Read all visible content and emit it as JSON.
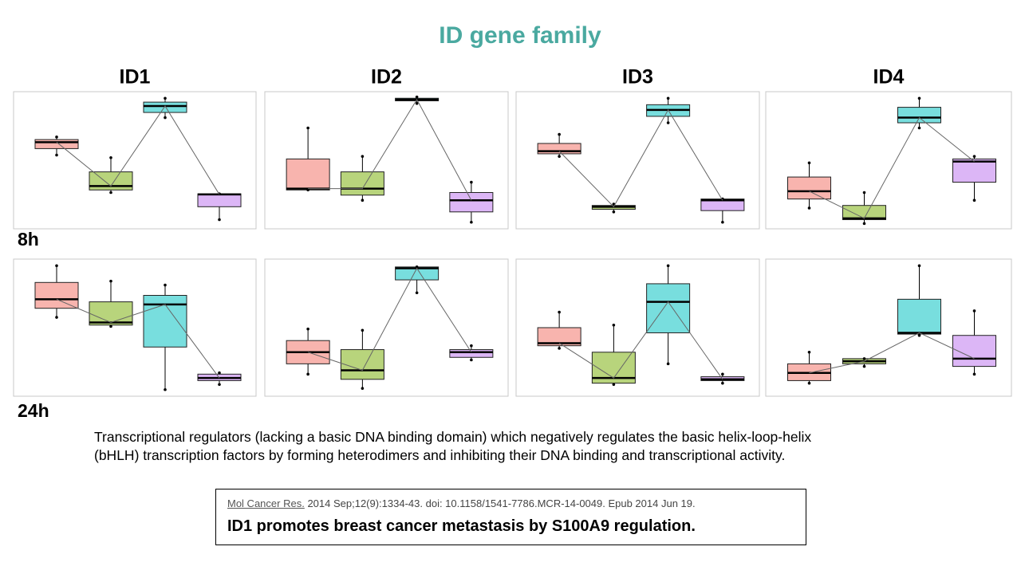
{
  "title": "ID gene family",
  "columns": [
    "ID1",
    "ID2",
    "ID3",
    "ID4"
  ],
  "row_labels": [
    "8h",
    "24h"
  ],
  "description": "Transcriptional regulators (lacking a basic DNA binding domain) which negatively regulates the basic helix-loop-helix (bHLH) transcription factors by forming heterodimers and inhibiting their DNA binding and transcriptional activity.",
  "citation": {
    "journal": "Mol Cancer Res.",
    "details": "2014 Sep;12(9):1334-43. doi: 10.1158/1541-7786.MCR-14-0049. Epub 2014 Jun 19.",
    "headline": "ID1 promotes breast cancer metastasis by S100A9 regulation."
  },
  "chart_data": [
    {
      "type": "box",
      "categories": [
        null,
        null,
        null,
        null
      ],
      "colors": [
        "#f8b4ae",
        "#b8d47c",
        "#78dede",
        "#dcb6f6"
      ],
      "ylim": [
        0,
        100
      ],
      "boxes": [
        {
          "min": 54,
          "q1": 59,
          "median": 64,
          "q3": 66,
          "max": 68
        },
        {
          "min": 25,
          "q1": 27,
          "median": 30,
          "q3": 41,
          "max": 52
        },
        {
          "min": 83,
          "q1": 87,
          "median": 92,
          "q3": 95,
          "max": 98
        },
        {
          "min": 4,
          "q1": 14,
          "median": 23.5,
          "q3": 24,
          "max": 24
        }
      ]
    },
    {
      "type": "box",
      "categories": [
        null,
        null,
        null,
        null
      ],
      "colors": [
        "#f8b4ae",
        "#b8d47c",
        "#78dede",
        "#dcb6f6"
      ],
      "ylim": [
        0,
        100
      ],
      "boxes": [
        {
          "min": 27,
          "q1": 27,
          "median": 28,
          "q3": 51,
          "max": 75
        },
        {
          "min": 19,
          "q1": 23,
          "median": 28,
          "q3": 41,
          "max": 53
        },
        {
          "min": 94,
          "q1": 96,
          "median": 97,
          "q3": 98,
          "max": 99
        },
        {
          "min": 2,
          "q1": 10,
          "median": 19,
          "q3": 25,
          "max": 33
        }
      ]
    },
    {
      "type": "box",
      "categories": [
        null,
        null,
        null,
        null
      ],
      "colors": [
        "#f8b4ae",
        "#b8d47c",
        "#78dede",
        "#dcb6f6"
      ],
      "ylim": [
        0,
        100
      ],
      "boxes": [
        {
          "min": 53,
          "q1": 55,
          "median": 57,
          "q3": 63,
          "max": 70
        },
        {
          "min": 10,
          "q1": 12,
          "median": 14,
          "q3": 15,
          "max": 16
        },
        {
          "min": 79,
          "q1": 84,
          "median": 89,
          "q3": 93,
          "max": 98
        },
        {
          "min": 2,
          "q1": 11,
          "median": 19,
          "q3": 20,
          "max": 20
        }
      ]
    },
    {
      "type": "box",
      "categories": [
        null,
        null,
        null,
        null
      ],
      "colors": [
        "#f8b4ae",
        "#b8d47c",
        "#78dede",
        "#dcb6f6"
      ],
      "ylim": [
        0,
        100
      ],
      "boxes": [
        {
          "min": 13,
          "q1": 20,
          "median": 26,
          "q3": 37,
          "max": 48
        },
        {
          "min": 1,
          "q1": 4,
          "median": 5,
          "q3": 15,
          "max": 25
        },
        {
          "min": 75,
          "q1": 79,
          "median": 83,
          "q3": 91,
          "max": 98
        },
        {
          "min": 19,
          "q1": 33,
          "median": 49,
          "q3": 51,
          "max": 53
        }
      ]
    },
    {
      "type": "box",
      "categories": [
        null,
        null,
        null,
        null
      ],
      "colors": [
        "#f8b4ae",
        "#b8d47c",
        "#78dede",
        "#dcb6f6"
      ],
      "ylim": [
        0,
        100
      ],
      "boxes": [
        {
          "min": 58,
          "q1": 65,
          "median": 72,
          "q3": 85,
          "max": 98
        },
        {
          "min": 51,
          "q1": 52,
          "median": 54,
          "q3": 70,
          "max": 86
        },
        {
          "min": 2,
          "q1": 35,
          "median": 68,
          "q3": 75,
          "max": 83
        },
        {
          "min": 6,
          "q1": 9,
          "median": 11,
          "q3": 14,
          "max": 15
        }
      ]
    },
    {
      "type": "box",
      "categories": [
        null,
        null,
        null,
        null
      ],
      "colors": [
        "#f8b4ae",
        "#b8d47c",
        "#78dede",
        "#dcb6f6"
      ],
      "ylim": [
        0,
        100
      ],
      "boxes": [
        {
          "min": 14,
          "q1": 22,
          "median": 31,
          "q3": 40,
          "max": 49
        },
        {
          "min": 3,
          "q1": 10,
          "median": 17,
          "q3": 33,
          "max": 48
        },
        {
          "min": 77,
          "q1": 87,
          "median": 96,
          "q3": 97,
          "max": 97
        },
        {
          "min": 25,
          "q1": 27,
          "median": 31,
          "q3": 33,
          "max": 36
        }
      ]
    },
    {
      "type": "box",
      "categories": [
        null,
        null,
        null,
        null
      ],
      "colors": [
        "#f8b4ae",
        "#b8d47c",
        "#78dede",
        "#dcb6f6"
      ],
      "ylim": [
        0,
        100
      ],
      "boxes": [
        {
          "min": 34,
          "q1": 36,
          "median": 38,
          "q3": 50,
          "max": 62
        },
        {
          "min": 6,
          "q1": 7,
          "median": 11,
          "q3": 31,
          "max": 52
        },
        {
          "min": 22,
          "q1": 46,
          "median": 70,
          "q3": 84,
          "max": 98
        },
        {
          "min": 7,
          "q1": 9,
          "median": 10,
          "q3": 12,
          "max": 14
        }
      ]
    },
    {
      "type": "box",
      "categories": [
        null,
        null,
        null,
        null
      ],
      "colors": [
        "#f8b4ae",
        "#b8d47c",
        "#78dede",
        "#dcb6f6"
      ],
      "ylim": [
        0,
        100
      ],
      "boxes": [
        {
          "min": 7,
          "q1": 9,
          "median": 15,
          "q3": 22,
          "max": 31
        },
        {
          "min": 20,
          "q1": 22,
          "median": 24,
          "q3": 26,
          "max": 26
        },
        {
          "min": 44,
          "q1": 45,
          "median": 46,
          "q3": 72,
          "max": 98
        },
        {
          "min": 14,
          "q1": 20,
          "median": 26,
          "q3": 44,
          "max": 63
        }
      ]
    }
  ]
}
